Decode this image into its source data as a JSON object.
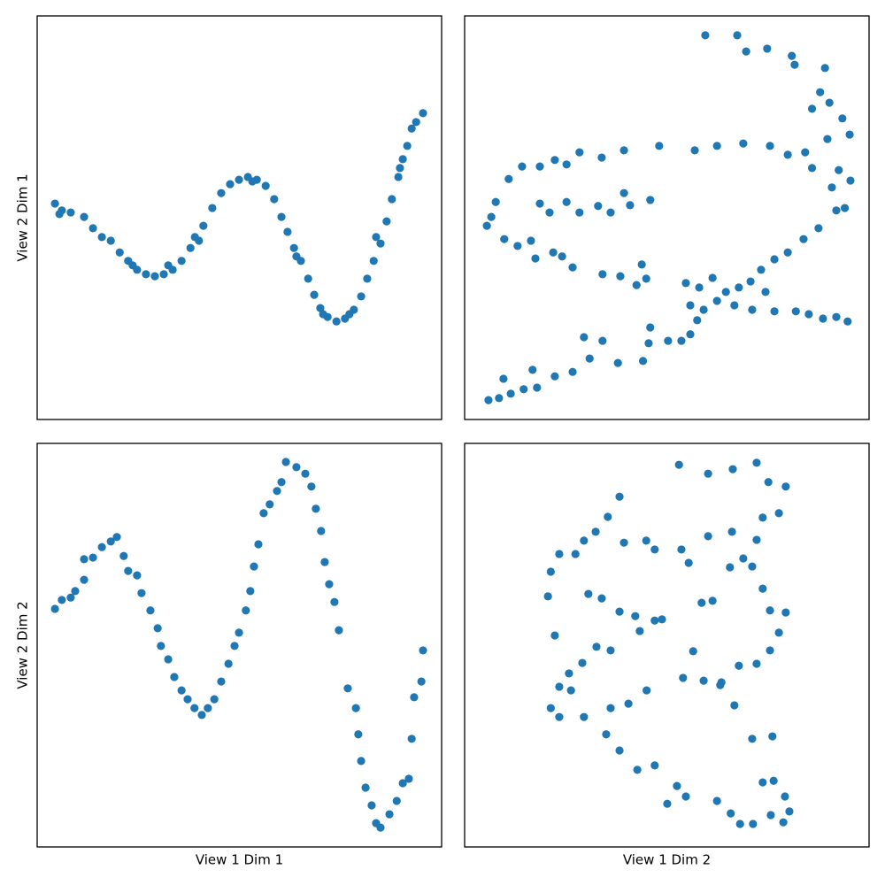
{
  "chart_data": [
    {
      "type": "scatter",
      "ylabel": "View 2 Dim 1",
      "xlim": [
        0,
        100
      ],
      "ylim": [
        0,
        100
      ],
      "color": "#1f77b4",
      "x": [
        4.4,
        6.1,
        8.3,
        11.6,
        13.8,
        16.0,
        18.2,
        20.4,
        22.5,
        24.7,
        26.9,
        29.1,
        31.3,
        33.5,
        35.7,
        37.9,
        39.0,
        41.1,
        43.3,
        45.5,
        47.7,
        49.9,
        52.1,
        54.3,
        56.5,
        58.6,
        60.4,
        61.9,
        63.5,
        65.2,
        67.0,
        68.5,
        70.0,
        71.8,
        74.0,
        76.1,
        78.3,
        80.1,
        81.6,
        83.2,
        84.9,
        86.4,
        87.7,
        89.3,
        90.4,
        91.5,
        92.6,
        93.7,
        95.4,
        5.5,
        23.6,
        32.4,
        40.0,
        53.2,
        64.1,
        70.7,
        77.2,
        83.8,
        89.7
      ],
      "values": [
        53.5,
        51.8,
        51.3,
        50.2,
        47.4,
        45.2,
        44.3,
        41.4,
        39.3,
        37.1,
        36.0,
        35.5,
        36.0,
        37.1,
        39.3,
        42.5,
        45.2,
        48.0,
        52.4,
        56.1,
        58.3,
        59.4,
        60.1,
        59.4,
        57.9,
        54.6,
        50.2,
        46.5,
        42.5,
        39.3,
        34.9,
        30.9,
        27.6,
        25.4,
        24.3,
        25.0,
        27.2,
        30.5,
        34.9,
        39.3,
        43.6,
        49.1,
        54.6,
        60.1,
        64.5,
        67.8,
        72.1,
        73.7,
        75.9,
        50.9,
        38.2,
        38.2,
        44.3,
        59.0,
        40.4,
        26.1,
        26.1,
        45.2,
        62.3
      ]
    },
    {
      "type": "scatter",
      "xlim": [
        0,
        100
      ],
      "ylim": [
        0,
        100
      ],
      "color": "#1f77b4",
      "x": [
        59.5,
        67.4,
        69.6,
        74.8,
        80.9,
        89.1,
        81.6,
        87.9,
        90.2,
        85.9,
        93.4,
        95.2,
        89.7,
        92.5,
        95.4,
        90.8,
        85.9,
        94.0,
        91.9,
        87.5,
        83.8,
        79.9,
        76.6,
        73.3,
        70.7,
        67.8,
        64.6,
        61.3,
        58.0,
        54.7,
        55.8,
        59.1,
        62.4,
        66.7,
        71.1,
        74.4,
        76.6,
        81.9,
        85.1,
        88.6,
        91.9,
        94.7,
        57.5,
        55.8,
        53.6,
        50.3,
        45.9,
        44.1,
        45.5,
        37.9,
        34.1,
        30.9,
        29.5,
        26.7,
        22.3,
        17.9,
        14.6,
        11.4,
        8.5,
        5.9,
        9.6,
        16.8,
        6.6,
        5.5,
        7.7,
        10.9,
        14.2,
        18.6,
        22.3,
        25.2,
        28.4,
        33.9,
        39.4,
        48.1,
        56.9,
        62.4,
        68.9,
        75.5,
        79.9,
        84.2,
        9.8,
        13.1,
        16.4,
        17.5,
        21.9,
        24.1,
        26.7,
        34.1,
        38.5,
        42.5,
        43.8,
        44.9,
        18.6,
        25.2,
        28.4,
        33.0,
        36.1,
        39.4,
        40.9,
        45.9,
        21.0
      ],
      "values": [
        95.2,
        95.2,
        91.2,
        91.9,
        90.1,
        87.1,
        87.9,
        81.1,
        78.5,
        77.0,
        74.6,
        70.6,
        69.5,
        61.8,
        59.2,
        57.5,
        62.3,
        52.4,
        51.8,
        47.4,
        44.7,
        41.4,
        39.7,
        37.1,
        34.2,
        32.7,
        31.6,
        35.1,
        32.7,
        33.8,
        28.3,
        27.2,
        29.4,
        28.3,
        27.2,
        31.6,
        26.8,
        26.8,
        26.1,
        25.0,
        25.4,
        24.3,
        24.6,
        21.1,
        19.5,
        19.5,
        22.8,
        14.5,
        18.9,
        14.0,
        19.5,
        15.1,
        20.4,
        11.8,
        10.7,
        7.9,
        7.5,
        6.4,
        5.3,
        4.8,
        10.1,
        12.3,
        50.2,
        48.0,
        53.9,
        59.6,
        62.7,
        62.7,
        64.3,
        63.2,
        66.2,
        64.9,
        66.7,
        67.8,
        66.7,
        67.8,
        68.4,
        67.8,
        65.6,
        66.2,
        44.7,
        43.0,
        44.3,
        39.9,
        41.4,
        40.4,
        37.7,
        36.0,
        35.5,
        33.3,
        38.4,
        34.9,
        53.5,
        53.9,
        51.3,
        52.9,
        51.3,
        56.1,
        53.1,
        54.4,
        51.3
      ]
    },
    {
      "type": "scatter",
      "xlabel": "View 1 Dim 1",
      "ylabel": "View 2 Dim 2",
      "xlim": [
        0,
        100
      ],
      "ylim": [
        0,
        100
      ],
      "color": "#1f77b4",
      "x": [
        4.4,
        6.1,
        8.3,
        9.4,
        11.6,
        11.6,
        13.8,
        16.0,
        18.2,
        19.7,
        21.4,
        22.5,
        24.7,
        25.8,
        28.0,
        29.8,
        30.6,
        32.4,
        33.9,
        35.7,
        37.2,
        38.9,
        40.7,
        42.2,
        43.8,
        45.5,
        47.3,
        48.8,
        49.9,
        51.6,
        52.7,
        53.6,
        54.7,
        56.0,
        57.5,
        59.3,
        60.4,
        61.5,
        64.1,
        66.3,
        67.8,
        68.9,
        70.2,
        71.1,
        72.2,
        73.5,
        74.6,
        76.8,
        78.8,
        79.4,
        80.1,
        81.2,
        82.7,
        83.8,
        84.9,
        87.1,
        88.9,
        90.4,
        91.9,
        92.6,
        93.2,
        95.0,
        95.4
      ],
      "values": [
        59.0,
        61.2,
        61.8,
        63.4,
        66.2,
        71.3,
        71.7,
        74.3,
        75.7,
        76.8,
        72.1,
        68.4,
        67.3,
        62.9,
        58.6,
        54.2,
        49.8,
        46.5,
        42.1,
        38.8,
        36.6,
        34.4,
        32.7,
        34.4,
        36.6,
        41.0,
        45.4,
        49.8,
        53.1,
        58.6,
        63.4,
        69.5,
        75.0,
        82.7,
        84.9,
        88.2,
        90.4,
        95.4,
        94.1,
        92.5,
        89.3,
        83.8,
        78.3,
        70.6,
        65.1,
        60.7,
        53.7,
        39.3,
        34.4,
        27.9,
        21.3,
        14.7,
        10.3,
        5.9,
        4.8,
        8.1,
        11.4,
        15.8,
        16.9,
        26.8,
        37.1,
        41.0,
        48.7
      ]
    },
    {
      "type": "scatter",
      "xlabel": "View 1 Dim 2",
      "xlim": [
        0,
        100
      ],
      "ylim": [
        0,
        100
      ],
      "color": "#1f77b4",
      "x": [
        53.0,
        60.2,
        66.3,
        72.2,
        75.1,
        79.4,
        77.7,
        73.7,
        72.2,
        71.1,
        73.7,
        75.5,
        79.4,
        77.7,
        75.5,
        72.2,
        67.8,
        63.5,
        59.1,
        54.0,
        56.5,
        61.3,
        58.6,
        65.6,
        68.9,
        66.1,
        60.2,
        55.4,
        53.6,
        47.0,
        44.9,
        39.4,
        38.3,
        35.4,
        32.4,
        29.5,
        27.4,
        23.4,
        21.3,
        20.6,
        22.3,
        30.6,
        33.9,
        38.3,
        42.2,
        47.0,
        48.8,
        43.3,
        32.6,
        36.1,
        29.1,
        25.8,
        23.4,
        21.3,
        23.4,
        29.5,
        36.1,
        40.5,
        45.0,
        26.3,
        35.0,
        38.3,
        42.7,
        47.0,
        52.5,
        54.7,
        50.1,
        62.4,
        65.8,
        68.1,
        71.3,
        75.7,
        78.8,
        80.3,
        79.2,
        76.4,
        73.7,
        71.1,
        76.1,
        66.7,
        63.2
      ],
      "values": [
        94.7,
        92.5,
        93.6,
        95.2,
        90.4,
        89.3,
        82.7,
        81.6,
        76.1,
        69.5,
        64.0,
        58.6,
        58.1,
        53.1,
        48.7,
        45.4,
        44.9,
        40.8,
        41.2,
        41.9,
        48.5,
        61.0,
        60.5,
        69.3,
        71.5,
        78.1,
        77.0,
        70.4,
        73.7,
        73.7,
        75.9,
        75.4,
        86.8,
        81.8,
        78.1,
        75.9,
        72.6,
        72.6,
        68.2,
        62.1,
        52.4,
        62.7,
        61.6,
        58.3,
        57.2,
        56.1,
        56.4,
        53.5,
        49.6,
        48.7,
        45.6,
        43.0,
        39.7,
        34.4,
        32.2,
        32.2,
        34.4,
        35.5,
        38.8,
        38.8,
        27.9,
        23.9,
        19.1,
        20.2,
        15.1,
        12.5,
        10.7,
        11.4,
        8.3,
        5.7,
        5.7,
        7.9,
        6.1,
        8.8,
        12.5,
        16.4,
        16.0,
        26.8,
        27.4,
        35.1,
        40.1
      ]
    }
  ]
}
